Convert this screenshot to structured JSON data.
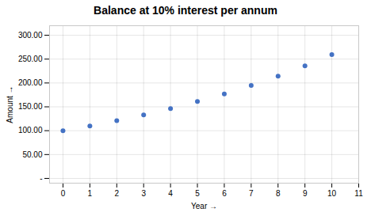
{
  "chart_data": {
    "type": "scatter",
    "title": "Balance at 10% interest per annum",
    "xlabel": "Year",
    "ylabel": "Amount",
    "x": [
      0,
      1,
      2,
      3,
      4,
      5,
      6,
      7,
      8,
      9,
      10
    ],
    "values": [
      100.0,
      110.0,
      121.0,
      133.1,
      146.41,
      161.051,
      177.156,
      194.872,
      214.359,
      235.795,
      259.374
    ],
    "color": "#4472C4",
    "xlim": [
      -0.5,
      11
    ],
    "ylim": [
      -10,
      320
    ],
    "xticks": [
      0,
      1,
      2,
      3,
      4,
      5,
      6,
      7,
      8,
      9,
      10,
      11
    ],
    "yticks": [
      {
        "value": 0,
        "label": "-"
      },
      {
        "value": 50,
        "label": "50.00"
      },
      {
        "value": 100,
        "label": "100.00"
      },
      {
        "value": 150,
        "label": "150.00"
      },
      {
        "value": 200,
        "label": "200.00"
      },
      {
        "value": 250,
        "label": "250.00"
      },
      {
        "value": 300,
        "label": "300.00"
      }
    ],
    "grid": true
  }
}
